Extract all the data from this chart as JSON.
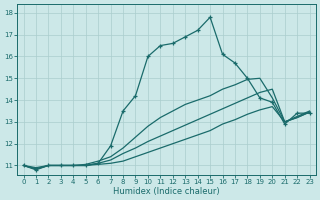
{
  "xlabel": "Humidex (Indice chaleur)",
  "xlim": [
    -0.5,
    23.5
  ],
  "ylim": [
    10.55,
    18.4
  ],
  "xticks": [
    0,
    1,
    2,
    3,
    4,
    5,
    6,
    7,
    8,
    9,
    10,
    11,
    12,
    13,
    14,
    15,
    16,
    17,
    18,
    19,
    20,
    21,
    22,
    23
  ],
  "yticks": [
    11,
    12,
    13,
    14,
    15,
    16,
    17,
    18
  ],
  "bg_color": "#cce8e8",
  "line_color": "#1a6b6b",
  "grid_color": "#aacece",
  "line1_x": [
    0,
    1,
    2,
    3,
    4,
    5,
    6,
    7,
    8,
    9,
    10,
    11,
    12,
    13,
    14,
    15,
    16,
    17,
    18,
    19,
    20,
    21,
    22,
    23
  ],
  "line1_y": [
    11.0,
    10.8,
    11.0,
    11.0,
    11.0,
    11.0,
    11.1,
    11.9,
    13.5,
    14.2,
    16.0,
    16.5,
    16.6,
    16.9,
    17.2,
    17.8,
    16.1,
    15.7,
    15.0,
    14.1,
    13.9,
    12.9,
    13.4,
    13.4
  ],
  "line2_x": [
    0,
    1,
    2,
    3,
    4,
    5,
    6,
    7,
    8,
    9,
    10,
    11,
    12,
    13,
    14,
    15,
    16,
    17,
    18,
    19,
    20,
    21,
    22,
    23
  ],
  "line2_y": [
    11.0,
    10.9,
    11.0,
    11.0,
    11.0,
    11.05,
    11.2,
    11.4,
    11.8,
    12.3,
    12.8,
    13.2,
    13.5,
    13.8,
    14.0,
    14.2,
    14.5,
    14.7,
    14.95,
    15.0,
    14.1,
    13.0,
    13.25,
    13.5
  ],
  "line3_x": [
    0,
    1,
    2,
    3,
    4,
    5,
    6,
    7,
    8,
    9,
    10,
    11,
    12,
    13,
    14,
    15,
    16,
    17,
    18,
    19,
    20,
    21,
    22,
    23
  ],
  "line3_y": [
    11.0,
    10.85,
    11.0,
    11.0,
    11.0,
    11.0,
    11.1,
    11.25,
    11.55,
    11.8,
    12.1,
    12.35,
    12.6,
    12.85,
    13.1,
    13.35,
    13.6,
    13.85,
    14.1,
    14.35,
    14.5,
    13.0,
    13.2,
    13.45
  ],
  "line4_x": [
    0,
    1,
    2,
    3,
    4,
    5,
    6,
    7,
    8,
    9,
    10,
    11,
    12,
    13,
    14,
    15,
    16,
    17,
    18,
    19,
    20,
    21,
    22,
    23
  ],
  "line4_y": [
    11.0,
    10.83,
    11.0,
    11.0,
    11.0,
    11.0,
    11.05,
    11.1,
    11.2,
    11.4,
    11.6,
    11.8,
    12.0,
    12.2,
    12.4,
    12.6,
    12.9,
    13.1,
    13.35,
    13.55,
    13.7,
    13.0,
    13.2,
    13.45
  ]
}
